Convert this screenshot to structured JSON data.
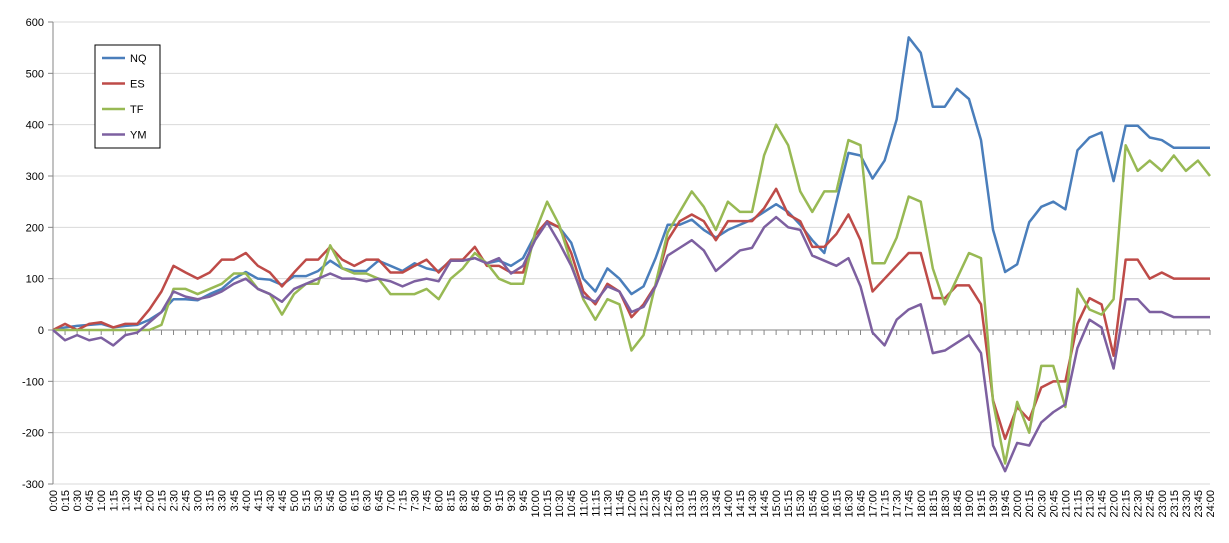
{
  "chart_data": {
    "type": "line",
    "categories": [
      "0:00",
      "0:15",
      "0:30",
      "0:45",
      "1:00",
      "1:15",
      "1:30",
      "1:45",
      "2:00",
      "2:15",
      "2:30",
      "2:45",
      "3:00",
      "3:15",
      "3:30",
      "3:45",
      "4:00",
      "4:15",
      "4:30",
      "4:45",
      "5:00",
      "5:15",
      "5:30",
      "5:45",
      "6:00",
      "6:15",
      "6:30",
      "6:45",
      "7:00",
      "7:15",
      "7:30",
      "7:45",
      "8:00",
      "8:15",
      "8:30",
      "8:45",
      "9:00",
      "9:15",
      "9:30",
      "9:45",
      "10:00",
      "10:15",
      "10:30",
      "10:45",
      "11:00",
      "11:15",
      "11:30",
      "11:45",
      "12:00",
      "12:15",
      "12:30",
      "12:45",
      "13:00",
      "13:15",
      "13:30",
      "13:45",
      "14:00",
      "14:15",
      "14:30",
      "14:45",
      "15:00",
      "15:15",
      "15:30",
      "15:45",
      "16:00",
      "16:15",
      "16:30",
      "16:45",
      "17:00",
      "17:15",
      "17:30",
      "17:45",
      "18:00",
      "18:15",
      "18:30",
      "18:45",
      "19:00",
      "19:15",
      "19:30",
      "19:45",
      "20:00",
      "20:15",
      "20:30",
      "20:45",
      "21:00",
      "21:15",
      "21:30",
      "21:45",
      "22:00",
      "22:15",
      "22:30",
      "22:45",
      "23:00",
      "23:15",
      "23:30",
      "23:45",
      "24:00"
    ],
    "series": [
      {
        "name": "NQ",
        "color": "#4a7ebb",
        "values": [
          0,
          5,
          8,
          10,
          12,
          5,
          8,
          10,
          20,
          35,
          60,
          60,
          58,
          70,
          80,
          100,
          113,
          100,
          98,
          88,
          105,
          105,
          115,
          135,
          120,
          115,
          115,
          135,
          125,
          115,
          130,
          120,
          115,
          135,
          135,
          140,
          130,
          135,
          125,
          140,
          185,
          210,
          200,
          170,
          100,
          75,
          120,
          100,
          70,
          85,
          140,
          205,
          205,
          215,
          195,
          180,
          195,
          205,
          215,
          230,
          245,
          230,
          205,
          175,
          150,
          250,
          345,
          340,
          295,
          330,
          410,
          570,
          540,
          435,
          435,
          470,
          450,
          370,
          195,
          113,
          128,
          210,
          240,
          250,
          235,
          350,
          375,
          385,
          290,
          398,
          398,
          375,
          370,
          355,
          355,
          355,
          355
        ]
      },
      {
        "name": "ES",
        "color": "#be4b48",
        "values": [
          0,
          12,
          0,
          12,
          15,
          5,
          12,
          12,
          40,
          75,
          125,
          112,
          100,
          112,
          137,
          137,
          150,
          125,
          112,
          85,
          112,
          137,
          137,
          162,
          137,
          125,
          137,
          137,
          112,
          112,
          125,
          137,
          112,
          137,
          137,
          162,
          125,
          125,
          112,
          112,
          185,
          212,
          200,
          150,
          75,
          50,
          90,
          75,
          25,
          50,
          87,
          175,
          212,
          225,
          212,
          175,
          212,
          212,
          212,
          237,
          275,
          225,
          212,
          162,
          162,
          187,
          225,
          175,
          75,
          100,
          125,
          150,
          150,
          62,
          62,
          87,
          87,
          50,
          -137,
          -212,
          -150,
          -175,
          -112,
          -100,
          -100,
          12,
          62,
          50,
          -50,
          137,
          137,
          100,
          112,
          100,
          100,
          100,
          100
        ]
      },
      {
        "name": "TF",
        "color": "#98b954",
        "values": [
          0,
          0,
          0,
          0,
          0,
          0,
          0,
          0,
          0,
          10,
          80,
          80,
          70,
          80,
          90,
          110,
          110,
          80,
          70,
          30,
          70,
          90,
          90,
          165,
          120,
          110,
          110,
          100,
          70,
          70,
          70,
          80,
          60,
          100,
          120,
          150,
          130,
          100,
          90,
          90,
          190,
          250,
          205,
          130,
          60,
          20,
          60,
          50,
          -40,
          -10,
          90,
          190,
          230,
          270,
          240,
          195,
          250,
          230,
          230,
          340,
          400,
          360,
          270,
          230,
          270,
          270,
          370,
          360,
          130,
          130,
          180,
          260,
          250,
          120,
          50,
          100,
          150,
          140,
          -140,
          -260,
          -140,
          -200,
          -70,
          -70,
          -150,
          80,
          40,
          30,
          60,
          360,
          310,
          330,
          310,
          340,
          310,
          330,
          300
        ]
      },
      {
        "name": "YM",
        "color": "#7d60a0",
        "values": [
          0,
          -20,
          -10,
          -20,
          -15,
          -30,
          -10,
          -5,
          15,
          35,
          75,
          65,
          60,
          65,
          75,
          90,
          100,
          80,
          70,
          55,
          80,
          90,
          100,
          110,
          100,
          100,
          95,
          100,
          95,
          85,
          95,
          100,
          95,
          135,
          135,
          140,
          130,
          140,
          110,
          125,
          175,
          210,
          170,
          125,
          65,
          55,
          85,
          75,
          35,
          45,
          85,
          145,
          160,
          175,
          155,
          115,
          135,
          155,
          160,
          200,
          220,
          200,
          195,
          145,
          135,
          125,
          140,
          85,
          -5,
          -30,
          20,
          40,
          50,
          -45,
          -40,
          -25,
          -10,
          -45,
          -225,
          -275,
          -220,
          -225,
          -180,
          -160,
          -145,
          -35,
          20,
          5,
          -75,
          60,
          60,
          35,
          35,
          25,
          25,
          25,
          25
        ]
      }
    ],
    "ylim": [
      -300,
      600
    ],
    "yticks": [
      -300,
      -200,
      -100,
      0,
      100,
      200,
      300,
      400,
      500,
      600
    ],
    "grid": true,
    "legend": "top-left"
  }
}
